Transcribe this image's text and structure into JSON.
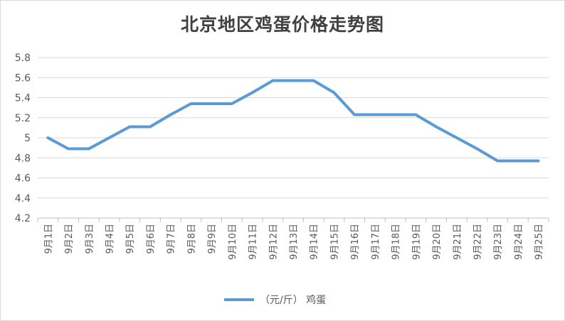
{
  "chart_data": {
    "type": "line",
    "title": "北京地区鸡蛋价格走势图",
    "xlabel": "",
    "ylabel": "",
    "categories": [
      "9月1日",
      "9月2日",
      "9月3日",
      "9月4日",
      "9月5日",
      "9月6日",
      "9月7日",
      "9月8日",
      "9月9日",
      "9月10日",
      "9月11日",
      "9月12日",
      "9月13日",
      "9月14日",
      "9月15日",
      "9月16日",
      "9月17日",
      "9月18日",
      "9月19日",
      "9月20日",
      "9月21日",
      "9月22日",
      "9月23日",
      "9月24日",
      "9月25日"
    ],
    "series": [
      {
        "name": "（元/斤） 鸡蛋",
        "values": [
          5.0,
          4.89,
          4.89,
          5.0,
          5.11,
          5.11,
          5.23,
          5.34,
          5.34,
          5.34,
          5.45,
          5.57,
          5.57,
          5.57,
          5.45,
          5.23,
          5.23,
          5.23,
          5.23,
          5.11,
          5.0,
          4.89,
          4.77,
          4.77,
          4.77
        ],
        "color": "#5b9bd5"
      }
    ],
    "ylim": [
      4.2,
      5.8
    ],
    "yticks": [
      "4.2",
      "4.4",
      "4.6",
      "4.8",
      "5",
      "5.2",
      "5.4",
      "5.6",
      "5.8"
    ],
    "grid": true,
    "legend": "bottom"
  }
}
